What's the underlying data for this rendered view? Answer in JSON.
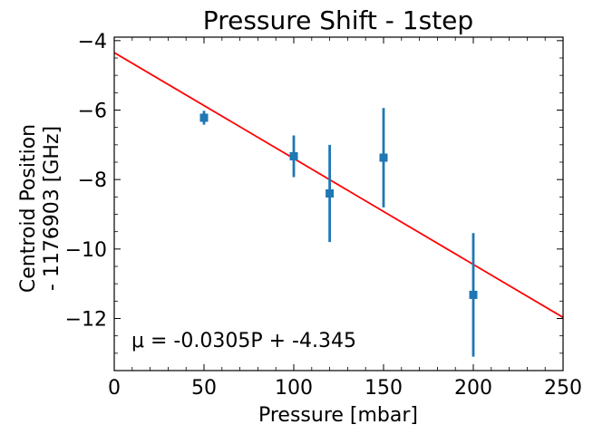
{
  "chart_data": {
    "type": "scatter",
    "title": "Pressure Shift - 1step",
    "xlabel": "Pressure [mbar]",
    "ylabel_lines": [
      "Centroid Position",
      "- 1176903  [GHz]"
    ],
    "xlim": [
      0,
      250
    ],
    "ylim": [
      -13.5,
      -3.9
    ],
    "xticks": [
      0,
      50,
      100,
      150,
      200,
      250
    ],
    "xtick_labels": [
      "0",
      "50",
      "100",
      "150",
      "200",
      "250"
    ],
    "yticks": [
      -4,
      -6,
      -8,
      -10,
      -12
    ],
    "ytick_labels": [
      "−4",
      "−6",
      "−8",
      "−10",
      "−12"
    ],
    "grid": false,
    "points": [
      {
        "x": 50,
        "y": -6.22,
        "err": 0.2
      },
      {
        "x": 100,
        "y": -7.33,
        "err": 0.6
      },
      {
        "x": 120,
        "y": -8.4,
        "err": 1.4
      },
      {
        "x": 150,
        "y": -7.37,
        "err": 1.43
      },
      {
        "x": 200,
        "y": -11.32,
        "err": 1.78
      }
    ],
    "fit": {
      "slope": -0.0305,
      "intercept": -4.345
    },
    "annotation": "μ = -0.0305P + -4.345",
    "colors": {
      "points": "#1f77b4",
      "fit": "#ff0000"
    }
  }
}
